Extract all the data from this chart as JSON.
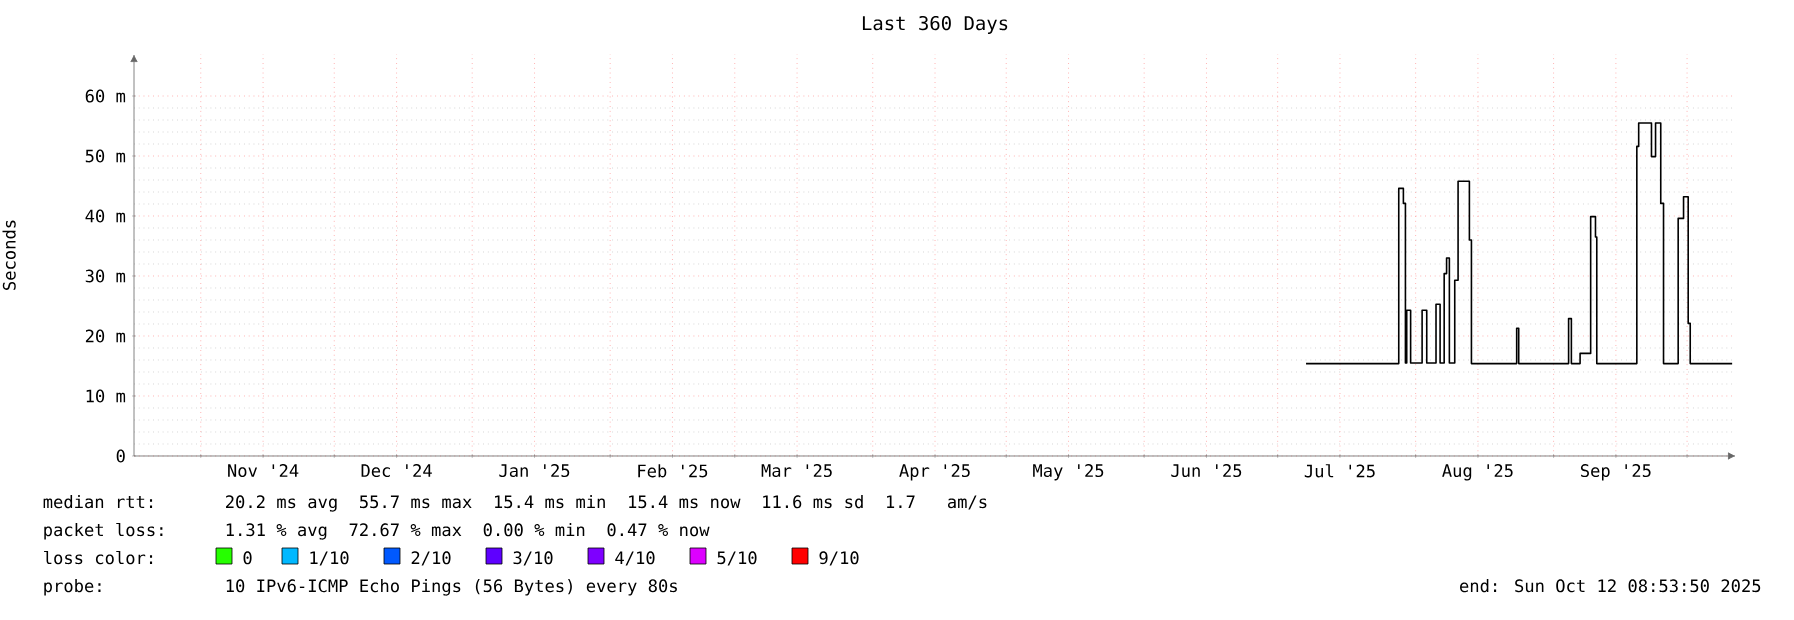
{
  "chart_data": {
    "type": "step",
    "title": "Last 360 Days",
    "ylabel": "Seconds",
    "xlim": [
      "2024-10-17",
      "2025-10-12"
    ],
    "ylim": [
      0,
      67
    ],
    "yticks": [
      0,
      {
        "value": 10,
        "label": "10 m"
      },
      {
        "value": 20,
        "label": "20 m"
      },
      {
        "value": 30,
        "label": "30 m"
      },
      {
        "value": 40,
        "label": "40 m"
      },
      {
        "value": 50,
        "label": "50 m"
      },
      {
        "value": 60,
        "label": "60 m"
      }
    ],
    "xticks": [
      {
        "value": "2024-11-01",
        "label": null
      },
      {
        "value": "2024-11-15",
        "label": "Nov '24"
      },
      {
        "value": "2024-12-01",
        "label": null
      },
      {
        "value": "2024-12-15",
        "label": "Dec '24"
      },
      {
        "value": "2025-01-01",
        "label": null
      },
      {
        "value": "2025-01-15",
        "label": "Jan '25"
      },
      {
        "value": "2025-02-01",
        "label": null
      },
      {
        "value": "2025-02-15",
        "label": "Feb '25"
      },
      {
        "value": "2025-03-01",
        "label": null
      },
      {
        "value": "2025-03-15",
        "label": "Mar '25"
      },
      {
        "value": "2025-04-01",
        "label": null
      },
      {
        "value": "2025-04-15",
        "label": "Apr '25"
      },
      {
        "value": "2025-05-01",
        "label": null
      },
      {
        "value": "2025-05-15",
        "label": "May '25"
      },
      {
        "value": "2025-06-01",
        "label": null
      },
      {
        "value": "2025-06-15",
        "label": "Jun '25"
      },
      {
        "value": "2025-07-01",
        "label": null
      },
      {
        "value": "2025-07-15",
        "label": "Jul '25"
      },
      {
        "value": "2025-08-01",
        "label": null
      },
      {
        "value": "2025-08-15",
        "label": "Aug '25"
      },
      {
        "value": "2025-09-01",
        "label": null
      },
      {
        "value": "2025-09-15",
        "label": "Sep '25"
      },
      {
        "value": "2025-10-01",
        "label": null
      }
    ],
    "grid": true,
    "legend": "bottom",
    "line_style": "solid",
    "marker": "none",
    "series": [
      {
        "color": "#000000",
        "x": [
          "2025-07-07T09:00",
          "2025-07-28T05:00",
          "2025-07-29T06:00",
          "2025-07-29T17:00",
          "2025-07-30T00:00",
          "2025-07-30T21:00",
          "2025-08-02T11:00",
          "2025-08-03T12:00",
          "2025-08-05T14:00",
          "2025-08-06T12:00",
          "2025-08-07T10:00",
          "2025-08-07T23:00",
          "2025-08-08T14:00",
          "2025-08-09T19:00",
          "2025-08-10T13:00",
          "2025-08-13T02:00",
          "2025-08-13T13:00",
          "2025-08-23T17:00",
          "2025-08-24T04:00",
          "2025-09-04T09:00",
          "2025-09-05T00:00",
          "2025-09-06T23:00",
          "2025-09-09T08:00",
          "2025-09-10T10:00",
          "2025-09-10T17:00",
          "2025-09-19T17:00",
          "2025-09-20T03:00",
          "2025-09-23T00:00",
          "2025-09-23T22:00",
          "2025-09-25T02:00",
          "2025-09-25T17:00",
          "2025-09-29T00:00",
          "2025-09-30T05:00",
          "2025-10-01T06:00",
          "2025-10-01T17:00",
          "2025-10-11T03:00"
        ],
        "values": [
          15.4,
          44.6,
          42.1,
          15.5,
          24.3,
          15.5,
          24.3,
          15.5,
          25.3,
          15.5,
          30.4,
          33,
          15.5,
          29.3,
          45.8,
          36,
          15.4,
          21.3,
          15.4,
          22.9,
          15.4,
          17.1,
          39.9,
          36.5,
          15.4,
          51.6,
          55.5,
          49.9,
          55.5,
          42.1,
          15.4,
          39.6,
          43.2,
          22.1,
          15.4,
          15.4
        ]
      },
      {
        "name": "0",
        "color": "#26ff00"
      },
      {
        "name": "1/10",
        "color": "#00b8ff"
      },
      {
        "name": "2/10",
        "color": "#0059ff"
      },
      {
        "name": "3/10",
        "color": "#5e00ff"
      },
      {
        "name": "4/10",
        "color": "#7e00ff"
      },
      {
        "name": "5/10",
        "color": "#dd00ff"
      },
      {
        "name": "9/10",
        "color": "#ff0000"
      }
    ],
    "annotations": [
      "median rtt:",
      "20.2 ms avg  55.7 ms max  15.4 ms min  15.4 ms now  11.6 ms sd  1.7   am/s",
      "packet loss:",
      "1.31 % avg  72.67 % max  0.00 % min  0.47 % now",
      "loss color:",
      "probe:",
      "10 IPv6-ICMP Echo Pings (56 Bytes) every 80s",
      "end: Sun Oct 12 08:53:50 2025"
    ]
  }
}
